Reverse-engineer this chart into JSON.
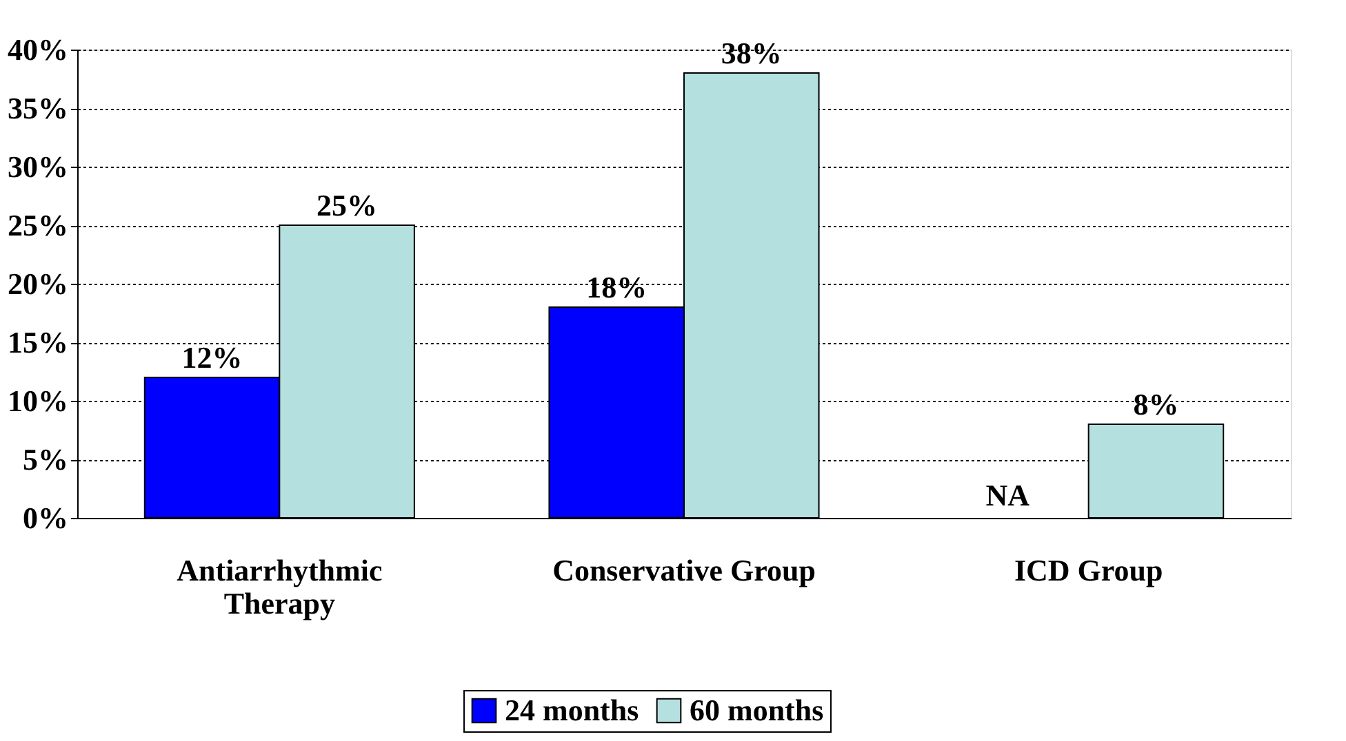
{
  "chart_data": {
    "type": "bar",
    "categories": [
      "Antiarrhythmic Therapy",
      "Conservative Group",
      "ICD Group"
    ],
    "series": [
      {
        "name": "24 months",
        "color": "#0000ff",
        "values": [
          12,
          18,
          null
        ],
        "value_labels": [
          "12%",
          "18%",
          null
        ]
      },
      {
        "name": "60 months",
        "color": "#b4e0e0",
        "values": [
          25,
          38,
          8
        ],
        "value_labels": [
          "25%",
          "38%",
          "8%"
        ]
      }
    ],
    "ylim": [
      0,
      40
    ],
    "yticks": [
      {
        "value": 0,
        "label": "0%"
      },
      {
        "value": 5,
        "label": "5%"
      },
      {
        "value": 10,
        "label": "10%"
      },
      {
        "value": 15,
        "label": "15%"
      },
      {
        "value": 20,
        "label": "20%"
      },
      {
        "value": 25,
        "label": "25%"
      },
      {
        "value": 30,
        "label": "30%"
      },
      {
        "value": 35,
        "label": "35%"
      },
      {
        "value": 40,
        "label": "40%"
      }
    ],
    "annotations": [
      {
        "text": "NA",
        "x": "ICD Group",
        "y": 0
      }
    ],
    "grid": "y",
    "line_style": "dotted",
    "legend": "bottom"
  }
}
